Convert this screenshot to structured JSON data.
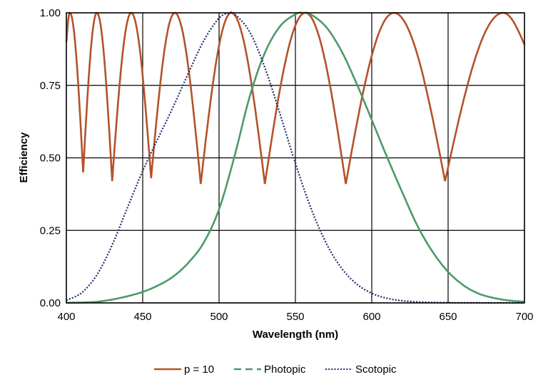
{
  "chart_data": {
    "type": "line",
    "title": "",
    "xlabel": "Wavelength (nm)",
    "ylabel": "Efficiency",
    "xlim": [
      400,
      700
    ],
    "ylim": [
      0,
      1
    ],
    "xticks": [
      "400",
      "450",
      "500",
      "550",
      "600",
      "650",
      "700"
    ],
    "yticks": [
      "0.00",
      "0.25",
      "0.50",
      "0.75",
      "1.00"
    ],
    "grid": true,
    "legend_position": "bottom",
    "series": [
      {
        "name": "p = 10",
        "color": "#b4522a",
        "style": "solid",
        "extrema": [
          {
            "x": 400,
            "y": 0.9
          },
          {
            "x": 402.3,
            "y": 1.0
          },
          {
            "x": 411,
            "y": 0.45
          },
          {
            "x": 420,
            "y": 1.0
          },
          {
            "x": 430,
            "y": 0.42
          },
          {
            "x": 442.5,
            "y": 1.0
          },
          {
            "x": 455.5,
            "y": 0.43
          },
          {
            "x": 471,
            "y": 1.0
          },
          {
            "x": 488,
            "y": 0.41
          },
          {
            "x": 508,
            "y": 1.0
          },
          {
            "x": 530,
            "y": 0.41
          },
          {
            "x": 556.5,
            "y": 1.0
          },
          {
            "x": 583,
            "y": 0.41
          },
          {
            "x": 614.5,
            "y": 1.0
          },
          {
            "x": 648,
            "y": 0.42
          },
          {
            "x": 686,
            "y": 1.0
          },
          {
            "x": 700,
            "y": 0.89
          }
        ]
      },
      {
        "name": "Photopic",
        "color": "#4c9a68",
        "style": "dashed",
        "x": [
          400,
          410,
          420,
          430,
          440,
          450,
          460,
          470,
          480,
          490,
          500,
          510,
          520,
          530,
          540,
          550,
          555,
          560,
          570,
          580,
          590,
          600,
          610,
          620,
          630,
          640,
          650,
          660,
          670,
          680,
          690,
          700
        ],
        "y": [
          0.0004,
          0.0012,
          0.004,
          0.0116,
          0.023,
          0.038,
          0.06,
          0.091,
          0.139,
          0.208,
          0.323,
          0.503,
          0.71,
          0.862,
          0.954,
          0.995,
          1.0,
          0.995,
          0.952,
          0.87,
          0.757,
          0.631,
          0.503,
          0.381,
          0.265,
          0.175,
          0.107,
          0.061,
          0.032,
          0.017,
          0.0082,
          0.0041
        ]
      },
      {
        "name": "Scotopic",
        "color": "#1f2a6b",
        "style": "dotted",
        "x": [
          400,
          410,
          420,
          430,
          440,
          450,
          460,
          470,
          480,
          490,
          500,
          507,
          510,
          520,
          530,
          540,
          550,
          560,
          570,
          580,
          590,
          600,
          610,
          620,
          630,
          640,
          650,
          660,
          670,
          680,
          690,
          700
        ],
        "y": [
          0.0093,
          0.0348,
          0.0966,
          0.1998,
          0.3281,
          0.455,
          0.567,
          0.676,
          0.793,
          0.904,
          0.982,
          1.0,
          0.997,
          0.935,
          0.811,
          0.65,
          0.481,
          0.3288,
          0.2076,
          0.1212,
          0.0655,
          0.0332,
          0.0159,
          0.0074,
          0.0033,
          0.0015,
          0.0007,
          0.0003,
          0.00015,
          7e-05,
          4e-05,
          2e-05
        ]
      }
    ]
  }
}
